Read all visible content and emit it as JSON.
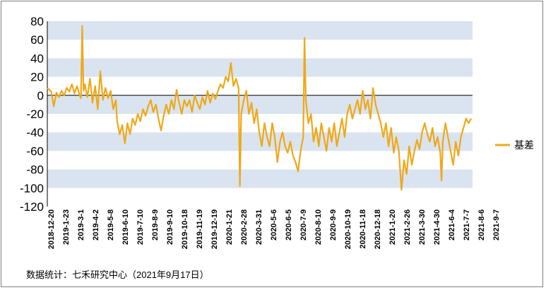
{
  "chart_data": {
    "type": "line",
    "title": "",
    "xlabel": "",
    "ylabel": "",
    "ylim": [
      -120,
      80
    ],
    "y_ticks": [
      80,
      60,
      40,
      20,
      0,
      -20,
      -40,
      -60,
      -80,
      -100,
      -120
    ],
    "grid": "alternating horizontal bands",
    "legend_position": "right",
    "x_tick_labels": [
      "2018-12-20",
      "2019-1-23",
      "2019-3-1",
      "2019-4-2",
      "2019-5-8",
      "2019-6-10",
      "2019-7-10",
      "2019-8-9",
      "2019-9-10",
      "2019-10-18",
      "2019-11-19",
      "2019-12-19",
      "2020-1-21",
      "2020-2-28",
      "2020-3-31",
      "2020-5-6",
      "2020-6-5",
      "2020-7-9",
      "2020-8-10",
      "2020-9-9",
      "2020-10-19",
      "2020-11-18",
      "2020-12-18",
      "2021-1-20",
      "2021-2-26",
      "2021-3-30",
      "2021-4-30",
      "2021-6-4",
      "2021-7-7",
      "2021-8-6",
      "2021-9-7"
    ],
    "series": [
      {
        "name": "基差",
        "color": "#f0a818",
        "values": [
          [
            0,
            8
          ],
          [
            3,
            4
          ],
          [
            5,
            -12
          ],
          [
            7,
            3
          ],
          [
            9,
            -2
          ],
          [
            11,
            5
          ],
          [
            13,
            0
          ],
          [
            15,
            8
          ],
          [
            17,
            4
          ],
          [
            19,
            12
          ],
          [
            21,
            2
          ],
          [
            23,
            10
          ],
          [
            25,
            0
          ],
          [
            26,
            -3
          ],
          [
            27,
            75
          ],
          [
            28,
            5
          ],
          [
            29,
            12
          ],
          [
            31,
            -2
          ],
          [
            33,
            18
          ],
          [
            35,
            -8
          ],
          [
            37,
            10
          ],
          [
            39,
            -15
          ],
          [
            41,
            26
          ],
          [
            43,
            -5
          ],
          [
            45,
            8
          ],
          [
            47,
            -3
          ],
          [
            49,
            5
          ],
          [
            51,
            -15
          ],
          [
            53,
            -5
          ],
          [
            54,
            -28
          ],
          [
            56,
            -42
          ],
          [
            58,
            -32
          ],
          [
            60,
            -52
          ],
          [
            62,
            -30
          ],
          [
            64,
            -42
          ],
          [
            66,
            -25
          ],
          [
            68,
            -32
          ],
          [
            70,
            -20
          ],
          [
            72,
            -28
          ],
          [
            74,
            -15
          ],
          [
            76,
            -22
          ],
          [
            78,
            -12
          ],
          [
            80,
            -5
          ],
          [
            82,
            -18
          ],
          [
            84,
            -10
          ],
          [
            86,
            -25
          ],
          [
            88,
            -38
          ],
          [
            90,
            -22
          ],
          [
            92,
            -10
          ],
          [
            94,
            -20
          ],
          [
            96,
            -5
          ],
          [
            98,
            -15
          ],
          [
            100,
            6
          ],
          [
            102,
            -8
          ],
          [
            104,
            -20
          ],
          [
            106,
            -5
          ],
          [
            108,
            -12
          ],
          [
            110,
            -5
          ],
          [
            112,
            -18
          ],
          [
            114,
            0
          ],
          [
            116,
            -8
          ],
          [
            118,
            -15
          ],
          [
            120,
            -2
          ],
          [
            122,
            -10
          ],
          [
            124,
            5
          ],
          [
            126,
            -8
          ],
          [
            128,
            2
          ],
          [
            130,
            -4
          ],
          [
            132,
            5
          ],
          [
            134,
            12
          ],
          [
            136,
            8
          ],
          [
            138,
            20
          ],
          [
            140,
            15
          ],
          [
            142,
            35
          ],
          [
            144,
            10
          ],
          [
            146,
            18
          ],
          [
            148,
            8
          ],
          [
            149,
            -98
          ],
          [
            150,
            -20
          ],
          [
            152,
            -5
          ],
          [
            154,
            5
          ],
          [
            156,
            -20
          ],
          [
            158,
            -8
          ],
          [
            160,
            -30
          ],
          [
            162,
            -15
          ],
          [
            164,
            -40
          ],
          [
            166,
            -55
          ],
          [
            168,
            -30
          ],
          [
            170,
            -45
          ],
          [
            172,
            -55
          ],
          [
            174,
            -30
          ],
          [
            176,
            -45
          ],
          [
            178,
            -72
          ],
          [
            180,
            -50
          ],
          [
            182,
            -40
          ],
          [
            184,
            -55
          ],
          [
            186,
            -62
          ],
          [
            188,
            -50
          ],
          [
            190,
            -65
          ],
          [
            192,
            -72
          ],
          [
            194,
            -82
          ],
          [
            196,
            -60
          ],
          [
            198,
            -45
          ],
          [
            199,
            62
          ],
          [
            200,
            -5
          ],
          [
            202,
            -30
          ],
          [
            204,
            -20
          ],
          [
            206,
            -50
          ],
          [
            208,
            -35
          ],
          [
            210,
            -55
          ],
          [
            212,
            -30
          ],
          [
            214,
            -45
          ],
          [
            216,
            -60
          ],
          [
            218,
            -35
          ],
          [
            220,
            -50
          ],
          [
            222,
            -30
          ],
          [
            224,
            -55
          ],
          [
            226,
            -40
          ],
          [
            228,
            -25
          ],
          [
            230,
            -45
          ],
          [
            232,
            -20
          ],
          [
            234,
            -10
          ],
          [
            236,
            -25
          ],
          [
            238,
            -15
          ],
          [
            240,
            -5
          ],
          [
            242,
            -20
          ],
          [
            244,
            5
          ],
          [
            246,
            -15
          ],
          [
            248,
            -5
          ],
          [
            250,
            -25
          ],
          [
            252,
            8
          ],
          [
            254,
            -10
          ],
          [
            256,
            -20
          ],
          [
            258,
            -30
          ],
          [
            260,
            -45
          ],
          [
            262,
            -30
          ],
          [
            264,
            -55
          ],
          [
            266,
            -35
          ],
          [
            268,
            -62
          ],
          [
            270,
            -45
          ],
          [
            272,
            -60
          ],
          [
            274,
            -102
          ],
          [
            276,
            -70
          ],
          [
            278,
            -85
          ],
          [
            280,
            -55
          ],
          [
            282,
            -75
          ],
          [
            284,
            -60
          ],
          [
            286,
            -48
          ],
          [
            288,
            -58
          ],
          [
            290,
            -40
          ],
          [
            292,
            -30
          ],
          [
            294,
            -42
          ],
          [
            296,
            -50
          ],
          [
            298,
            -35
          ],
          [
            300,
            -55
          ],
          [
            302,
            -45
          ],
          [
            304,
            -62
          ],
          [
            305,
            -92
          ],
          [
            306,
            -50
          ],
          [
            308,
            -30
          ],
          [
            310,
            -45
          ],
          [
            312,
            -60
          ],
          [
            314,
            -75
          ],
          [
            316,
            -50
          ],
          [
            318,
            -65
          ],
          [
            320,
            -45
          ],
          [
            322,
            -35
          ],
          [
            324,
            -25
          ],
          [
            326,
            -30
          ],
          [
            328,
            -25
          ]
        ]
      }
    ]
  },
  "source_note": "数据统计：七禾研究中心（2021年9月17日）"
}
